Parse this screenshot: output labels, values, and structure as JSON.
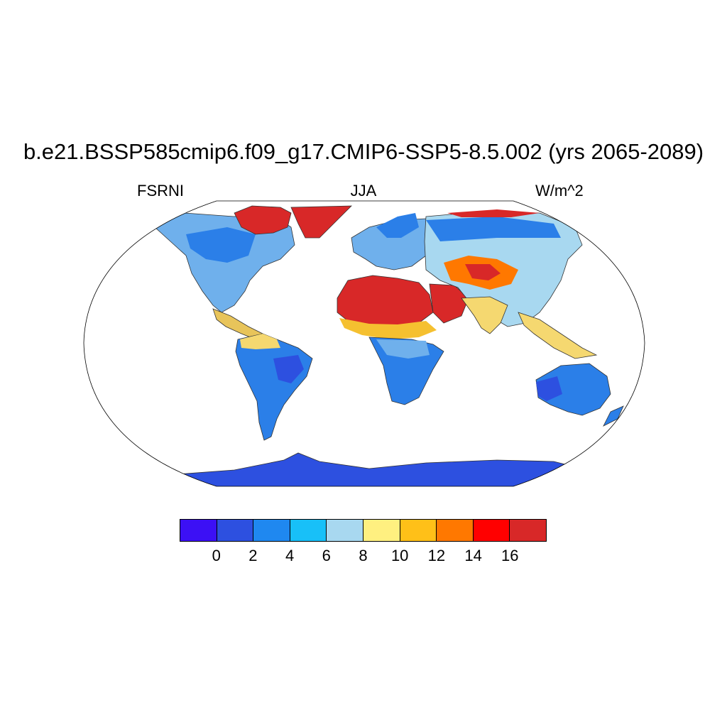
{
  "title": "b.e21.BSSP585cmip6.f09_g17.CMIP6-SSP5-8.5.002 (yrs 2065-2089)",
  "left_label": "FSRNI",
  "center_label": "JJA",
  "right_label": "W/m^2",
  "projection": "Robinson",
  "colorbar": {
    "colors": [
      "#3c10f5",
      "#2d50e0",
      "#1f88f0",
      "#18c0f8",
      "#a8d8f0",
      "#fff080",
      "#ffc018",
      "#ff7800",
      "#ff0000",
      "#d82828"
    ],
    "tick_labels": [
      "0",
      "2",
      "4",
      "6",
      "8",
      "10",
      "12",
      "14",
      "16"
    ]
  }
}
